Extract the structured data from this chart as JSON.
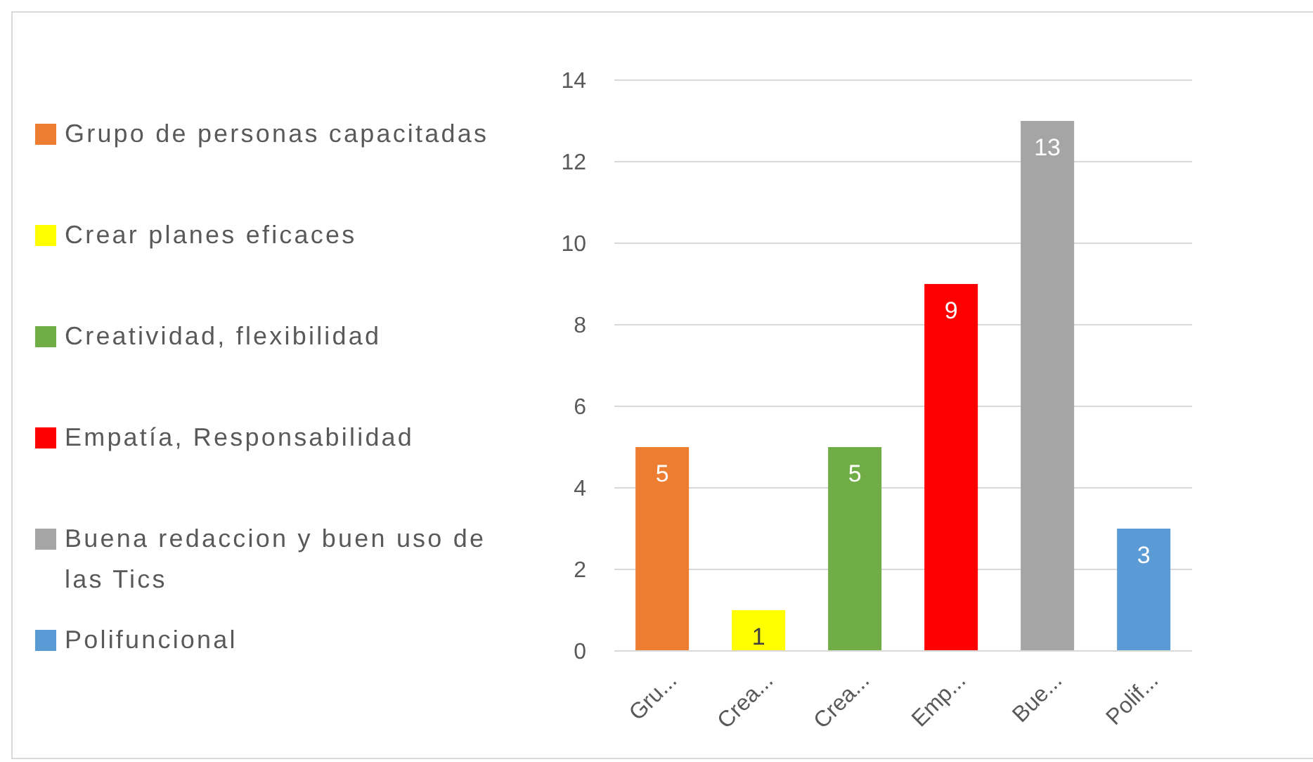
{
  "chart_data": {
    "type": "bar",
    "categories": [
      "Gru...",
      "Crea...",
      "Crea...",
      "Emp...",
      "Bue...",
      "Polif..."
    ],
    "series": [
      {
        "name": "Grupo de personas capacitadas",
        "color": "#ed7d31",
        "values": [
          5,
          null,
          null,
          null,
          null,
          null
        ]
      },
      {
        "name": "Crear planes eficaces",
        "color": "#ffff00",
        "values": [
          null,
          1,
          null,
          null,
          null,
          null
        ]
      },
      {
        "name": "Creatividad, flexibilidad",
        "color": "#70ad47",
        "values": [
          null,
          null,
          5,
          null,
          null,
          null
        ]
      },
      {
        "name": "Empatía, Responsabilidad",
        "color": "#ff0000",
        "values": [
          null,
          null,
          null,
          9,
          null,
          null
        ]
      },
      {
        "name": "Buena redaccion y buen uso de las Tics",
        "color": "#a5a5a5",
        "values": [
          null,
          null,
          null,
          null,
          13,
          null
        ]
      },
      {
        "name": "Polifuncional",
        "color": "#5b9bd5",
        "values": [
          null,
          null,
          null,
          null,
          null,
          3
        ]
      }
    ],
    "stacked": true,
    "ylim": [
      0,
      14
    ],
    "yticks": [
      0,
      2,
      4,
      6,
      8,
      10,
      12,
      14
    ],
    "grid": "y",
    "legend": "left",
    "data_labels": true
  }
}
